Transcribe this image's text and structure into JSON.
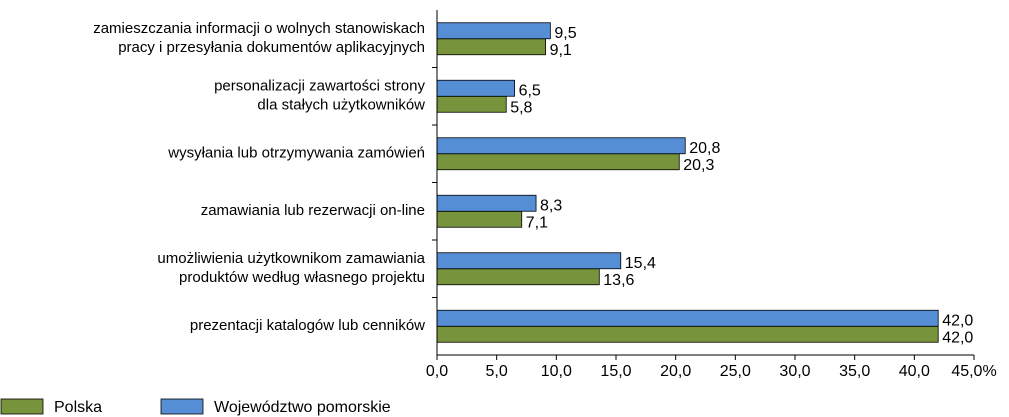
{
  "chart_data": {
    "type": "barh",
    "categories": [
      [
        "zamieszczania informacji o wolnych stanowiskach",
        "pracy i przesyłania dokumentów aplikacyjnych"
      ],
      [
        "personalizacji zawartości strony",
        "dla stałych użytkowników"
      ],
      [
        "wysyłania lub otrzymywania zamówień"
      ],
      [
        "zamawiania lub rezerwacji on-line"
      ],
      [
        "umożliwienia użytkownikom zamawiania",
        "produktów według własnego projektu"
      ],
      [
        "prezentacji katalogów lub cenników"
      ]
    ],
    "series": [
      {
        "name": "Polska",
        "color": "#77933c",
        "values": [
          9.1,
          5.8,
          20.3,
          7.1,
          13.6,
          42.0
        ],
        "value_labels": [
          "9,1",
          "5,8",
          "20,3",
          "7,1",
          "13,6",
          "42,0"
        ]
      },
      {
        "name": "Województwo pomorskie",
        "color": "#558ed5",
        "values": [
          9.5,
          6.5,
          20.8,
          8.3,
          15.4,
          42.0
        ],
        "value_labels": [
          "9,5",
          "6,5",
          "20,8",
          "8,3",
          "15,4",
          "42,0"
        ]
      }
    ],
    "xlim": [
      0,
      45
    ],
    "xticks": [
      {
        "value": 0,
        "label": "0,0"
      },
      {
        "value": 5,
        "label": "5,0"
      },
      {
        "value": 10,
        "label": "10,0"
      },
      {
        "value": 15,
        "label": "15,0"
      },
      {
        "value": 20,
        "label": "20,0"
      },
      {
        "value": 25,
        "label": "25,0"
      },
      {
        "value": 30,
        "label": "30,0"
      },
      {
        "value": 35,
        "label": "35,0"
      },
      {
        "value": 40,
        "label": "40,0"
      },
      {
        "value": 45,
        "label": "45,0%"
      }
    ],
    "legend": "bottom-left"
  }
}
